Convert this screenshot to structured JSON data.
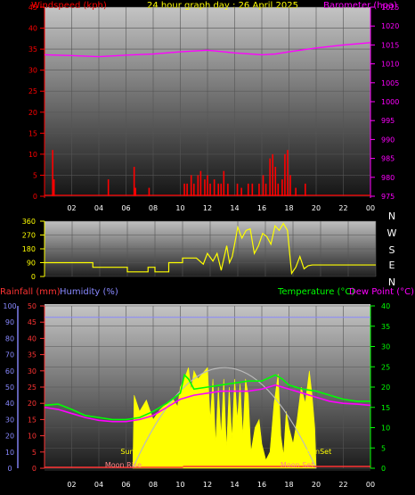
{
  "title": "24 hour graph day : 26 April 2025",
  "colors": {
    "wind": "#ff0000",
    "baro": "#ff00ff",
    "dir": "#ffff00",
    "rain": "#ff3333",
    "humidity": "#8888ff",
    "temp": "#00ff00",
    "dew": "#ff00ff",
    "sun": "#ffff00",
    "sunarc": "#bbbbbb",
    "tick": "#ffffff",
    "bg_top": "#c8c8c8",
    "bg_bot": "#1a1a1a"
  },
  "chart_data": [
    {
      "type": "bar",
      "name": "wind",
      "ylabel_left": "Windspeed (kph)",
      "ylabel_right": "Barometer (hpa)",
      "ylim_left": [
        0,
        45
      ],
      "ylim_right": [
        975,
        1025
      ],
      "left_ticks": [
        "0",
        "5",
        "10",
        "15",
        "20",
        "25",
        "30",
        "35",
        "40",
        "45"
      ],
      "right_ticks": [
        "975",
        "980",
        "985",
        "990",
        "995",
        "1000",
        "1005",
        "1010",
        "1015",
        "1020",
        "1025"
      ],
      "x_ticks": [
        "02",
        "04",
        "06",
        "08",
        "10",
        "12",
        "14",
        "16",
        "18",
        "20",
        "22",
        "00"
      ],
      "xlim": [
        0,
        24
      ],
      "wind_bars": [
        [
          0.6,
          11
        ],
        [
          0.7,
          4
        ],
        [
          4.7,
          4
        ],
        [
          6.6,
          7
        ],
        [
          6.7,
          2
        ],
        [
          7.7,
          2
        ],
        [
          10.3,
          3
        ],
        [
          10.5,
          3
        ],
        [
          10.8,
          5
        ],
        [
          11.0,
          3
        ],
        [
          11.3,
          5
        ],
        [
          11.5,
          6
        ],
        [
          11.8,
          4
        ],
        [
          12.0,
          5
        ],
        [
          12.2,
          3
        ],
        [
          12.5,
          4
        ],
        [
          12.8,
          3
        ],
        [
          13.0,
          3
        ],
        [
          13.2,
          6
        ],
        [
          13.5,
          3
        ],
        [
          14.2,
          3
        ],
        [
          14.5,
          2
        ],
        [
          15.0,
          3
        ],
        [
          15.3,
          3
        ],
        [
          15.8,
          3
        ],
        [
          16.1,
          5
        ],
        [
          16.3,
          3
        ],
        [
          16.6,
          9
        ],
        [
          16.8,
          10
        ],
        [
          17.0,
          7
        ],
        [
          17.2,
          3
        ],
        [
          17.5,
          4
        ],
        [
          17.7,
          10
        ],
        [
          17.9,
          11
        ],
        [
          18.1,
          5
        ],
        [
          18.5,
          2
        ],
        [
          19.2,
          3
        ]
      ],
      "barometer": [
        [
          0,
          1012.4
        ],
        [
          2,
          1012.2
        ],
        [
          4,
          1011.9
        ],
        [
          6,
          1012.3
        ],
        [
          8,
          1012.6
        ],
        [
          10,
          1013.2
        ],
        [
          12,
          1013.6
        ],
        [
          14,
          1012.9
        ],
        [
          16,
          1012.4
        ],
        [
          17,
          1012.6
        ],
        [
          18,
          1013.2
        ],
        [
          20,
          1014.2
        ],
        [
          22,
          1015.0
        ],
        [
          24,
          1015.6
        ]
      ]
    },
    {
      "type": "line",
      "name": "wind direction",
      "left_ticks": [
        "0",
        "90",
        "180",
        "270",
        "360"
      ],
      "right_labels": [
        "N",
        "W",
        "S",
        "E",
        "N"
      ],
      "ylim": [
        0,
        360
      ],
      "x_ticks": [],
      "direction": [
        [
          0,
          90
        ],
        [
          3.5,
          90
        ],
        [
          3.5,
          60
        ],
        [
          6,
          60
        ],
        [
          6,
          30
        ],
        [
          7.5,
          30
        ],
        [
          7.5,
          60
        ],
        [
          8,
          60
        ],
        [
          8,
          30
        ],
        [
          9,
          30
        ],
        [
          9,
          90
        ],
        [
          10,
          90
        ],
        [
          10,
          120
        ],
        [
          11,
          120
        ],
        [
          11.5,
          80
        ],
        [
          11.8,
          150
        ],
        [
          12.2,
          100
        ],
        [
          12.5,
          150
        ],
        [
          12.8,
          40
        ],
        [
          13.2,
          200
        ],
        [
          13.4,
          90
        ],
        [
          13.6,
          130
        ],
        [
          14,
          320
        ],
        [
          14.3,
          250
        ],
        [
          14.6,
          300
        ],
        [
          14.9,
          310
        ],
        [
          15.2,
          150
        ],
        [
          15.5,
          200
        ],
        [
          15.8,
          280
        ],
        [
          16.1,
          260
        ],
        [
          16.4,
          210
        ],
        [
          16.7,
          330
        ],
        [
          17,
          300
        ],
        [
          17.3,
          345
        ],
        [
          17.6,
          300
        ],
        [
          17.9,
          20
        ],
        [
          18.2,
          60
        ],
        [
          18.5,
          130
        ],
        [
          18.8,
          50
        ],
        [
          19.1,
          70
        ],
        [
          19.4,
          75
        ],
        [
          24,
          75
        ]
      ]
    },
    {
      "type": "area",
      "name": "temperature",
      "ylabel_left_1": "Rainfall (mm)",
      "ylabel_left_2": "Humidity (%)",
      "ylabel_right_1": "Temperature (°C)",
      "ylabel_right_2": "Dew Point (°C)",
      "humidity_ticks": [
        "0",
        "10",
        "20",
        "30",
        "40",
        "50",
        "60",
        "70",
        "80",
        "90",
        "100"
      ],
      "rain_ticks": [
        "0",
        "5",
        "10",
        "15",
        "20",
        "25",
        "30",
        "35",
        "40",
        "45",
        "50"
      ],
      "temp_ticks": [
        "0",
        "5",
        "10",
        "15",
        "20",
        "25",
        "30",
        "35",
        "40"
      ],
      "x_ticks": [
        "02",
        "04",
        "06",
        "08",
        "10",
        "12",
        "14",
        "16",
        "18",
        "20",
        "22",
        "00"
      ],
      "xlim": [
        0,
        24
      ],
      "humidity": [
        [
          0,
          93
        ],
        [
          24,
          93
        ]
      ],
      "temperature": [
        [
          0,
          15.5
        ],
        [
          1,
          15.8
        ],
        [
          2,
          14.5
        ],
        [
          3,
          13.0
        ],
        [
          4,
          12.5
        ],
        [
          5,
          12.0
        ],
        [
          6,
          12.0
        ],
        [
          7,
          12.5
        ],
        [
          8,
          14.0
        ],
        [
          9,
          16.0
        ],
        [
          10,
          18.5
        ],
        [
          10.3,
          23.0
        ],
        [
          10.6,
          22.0
        ],
        [
          11,
          19.5
        ],
        [
          12,
          20.0
        ],
        [
          13,
          20.5
        ],
        [
          14,
          21.0
        ],
        [
          15,
          21.5
        ],
        [
          16,
          21.5
        ],
        [
          17,
          23.0
        ],
        [
          17.5,
          22.0
        ],
        [
          18,
          20.5
        ],
        [
          19,
          19.5
        ],
        [
          20,
          19.0
        ],
        [
          21,
          18.0
        ],
        [
          22,
          17.0
        ],
        [
          23,
          16.5
        ],
        [
          24,
          16.5
        ]
      ],
      "dew_point": [
        [
          0,
          15.0
        ],
        [
          1,
          14.5
        ],
        [
          2,
          13.5
        ],
        [
          3,
          12.5
        ],
        [
          4,
          11.8
        ],
        [
          5,
          11.5
        ],
        [
          6,
          11.5
        ],
        [
          7,
          12.0
        ],
        [
          8,
          13.0
        ],
        [
          9,
          15.0
        ],
        [
          10,
          17.0
        ],
        [
          11,
          18.0
        ],
        [
          12,
          18.5
        ],
        [
          13,
          19.0
        ],
        [
          14,
          19.0
        ],
        [
          15,
          19.0
        ],
        [
          16,
          19.5
        ],
        [
          17,
          20.5
        ],
        [
          18,
          19.5
        ],
        [
          19,
          18.5
        ],
        [
          20,
          17.5
        ],
        [
          21,
          16.5
        ],
        [
          22,
          16.0
        ],
        [
          23,
          15.8
        ],
        [
          24,
          15.5
        ]
      ],
      "solar": [
        [
          6.5,
          0
        ],
        [
          6.6,
          0.45
        ],
        [
          7.0,
          0.35
        ],
        [
          7.5,
          0.42
        ],
        [
          8.0,
          0.3
        ],
        [
          8.5,
          0.36
        ],
        [
          9.0,
          0.4
        ],
        [
          9.5,
          0.42
        ],
        [
          9.8,
          0.38
        ],
        [
          10.0,
          0.5
        ],
        [
          10.3,
          0.55
        ],
        [
          10.6,
          0.62
        ],
        [
          10.8,
          0.48
        ],
        [
          11.0,
          0.6
        ],
        [
          11.3,
          0.55
        ],
        [
          11.6,
          0.58
        ],
        [
          12.0,
          0.62
        ],
        [
          12.2,
          0.3
        ],
        [
          12.4,
          0.55
        ],
        [
          12.6,
          0.15
        ],
        [
          12.8,
          0.5
        ],
        [
          13.0,
          0.2
        ],
        [
          13.2,
          0.55
        ],
        [
          13.4,
          0.12
        ],
        [
          13.6,
          0.5
        ],
        [
          13.8,
          0.18
        ],
        [
          14.0,
          0.55
        ],
        [
          14.2,
          0.3
        ],
        [
          14.4,
          0.52
        ],
        [
          14.6,
          0.2
        ],
        [
          14.8,
          0.55
        ],
        [
          15.0,
          0.45
        ],
        [
          15.2,
          0.1
        ],
        [
          15.5,
          0.25
        ],
        [
          15.8,
          0.3
        ],
        [
          16.0,
          0.15
        ],
        [
          16.3,
          0.05
        ],
        [
          16.6,
          0.1
        ],
        [
          16.9,
          0.4
        ],
        [
          17.2,
          0.58
        ],
        [
          17.4,
          0.2
        ],
        [
          17.6,
          0.08
        ],
        [
          17.8,
          0.35
        ],
        [
          18.0,
          0.25
        ],
        [
          18.3,
          0.15
        ],
        [
          18.6,
          0.3
        ],
        [
          18.9,
          0.5
        ],
        [
          19.2,
          0.4
        ],
        [
          19.5,
          0.6
        ],
        [
          19.7,
          0.45
        ],
        [
          19.9,
          0.25
        ],
        [
          20.0,
          0
        ]
      ],
      "sun_label": "Sun",
      "sunset_label": "SunSet",
      "moon_label_left": "Moon Rise",
      "moon_label_right": "Moon Set",
      "sun_hours": [
        6.5,
        20.0
      ]
    }
  ]
}
